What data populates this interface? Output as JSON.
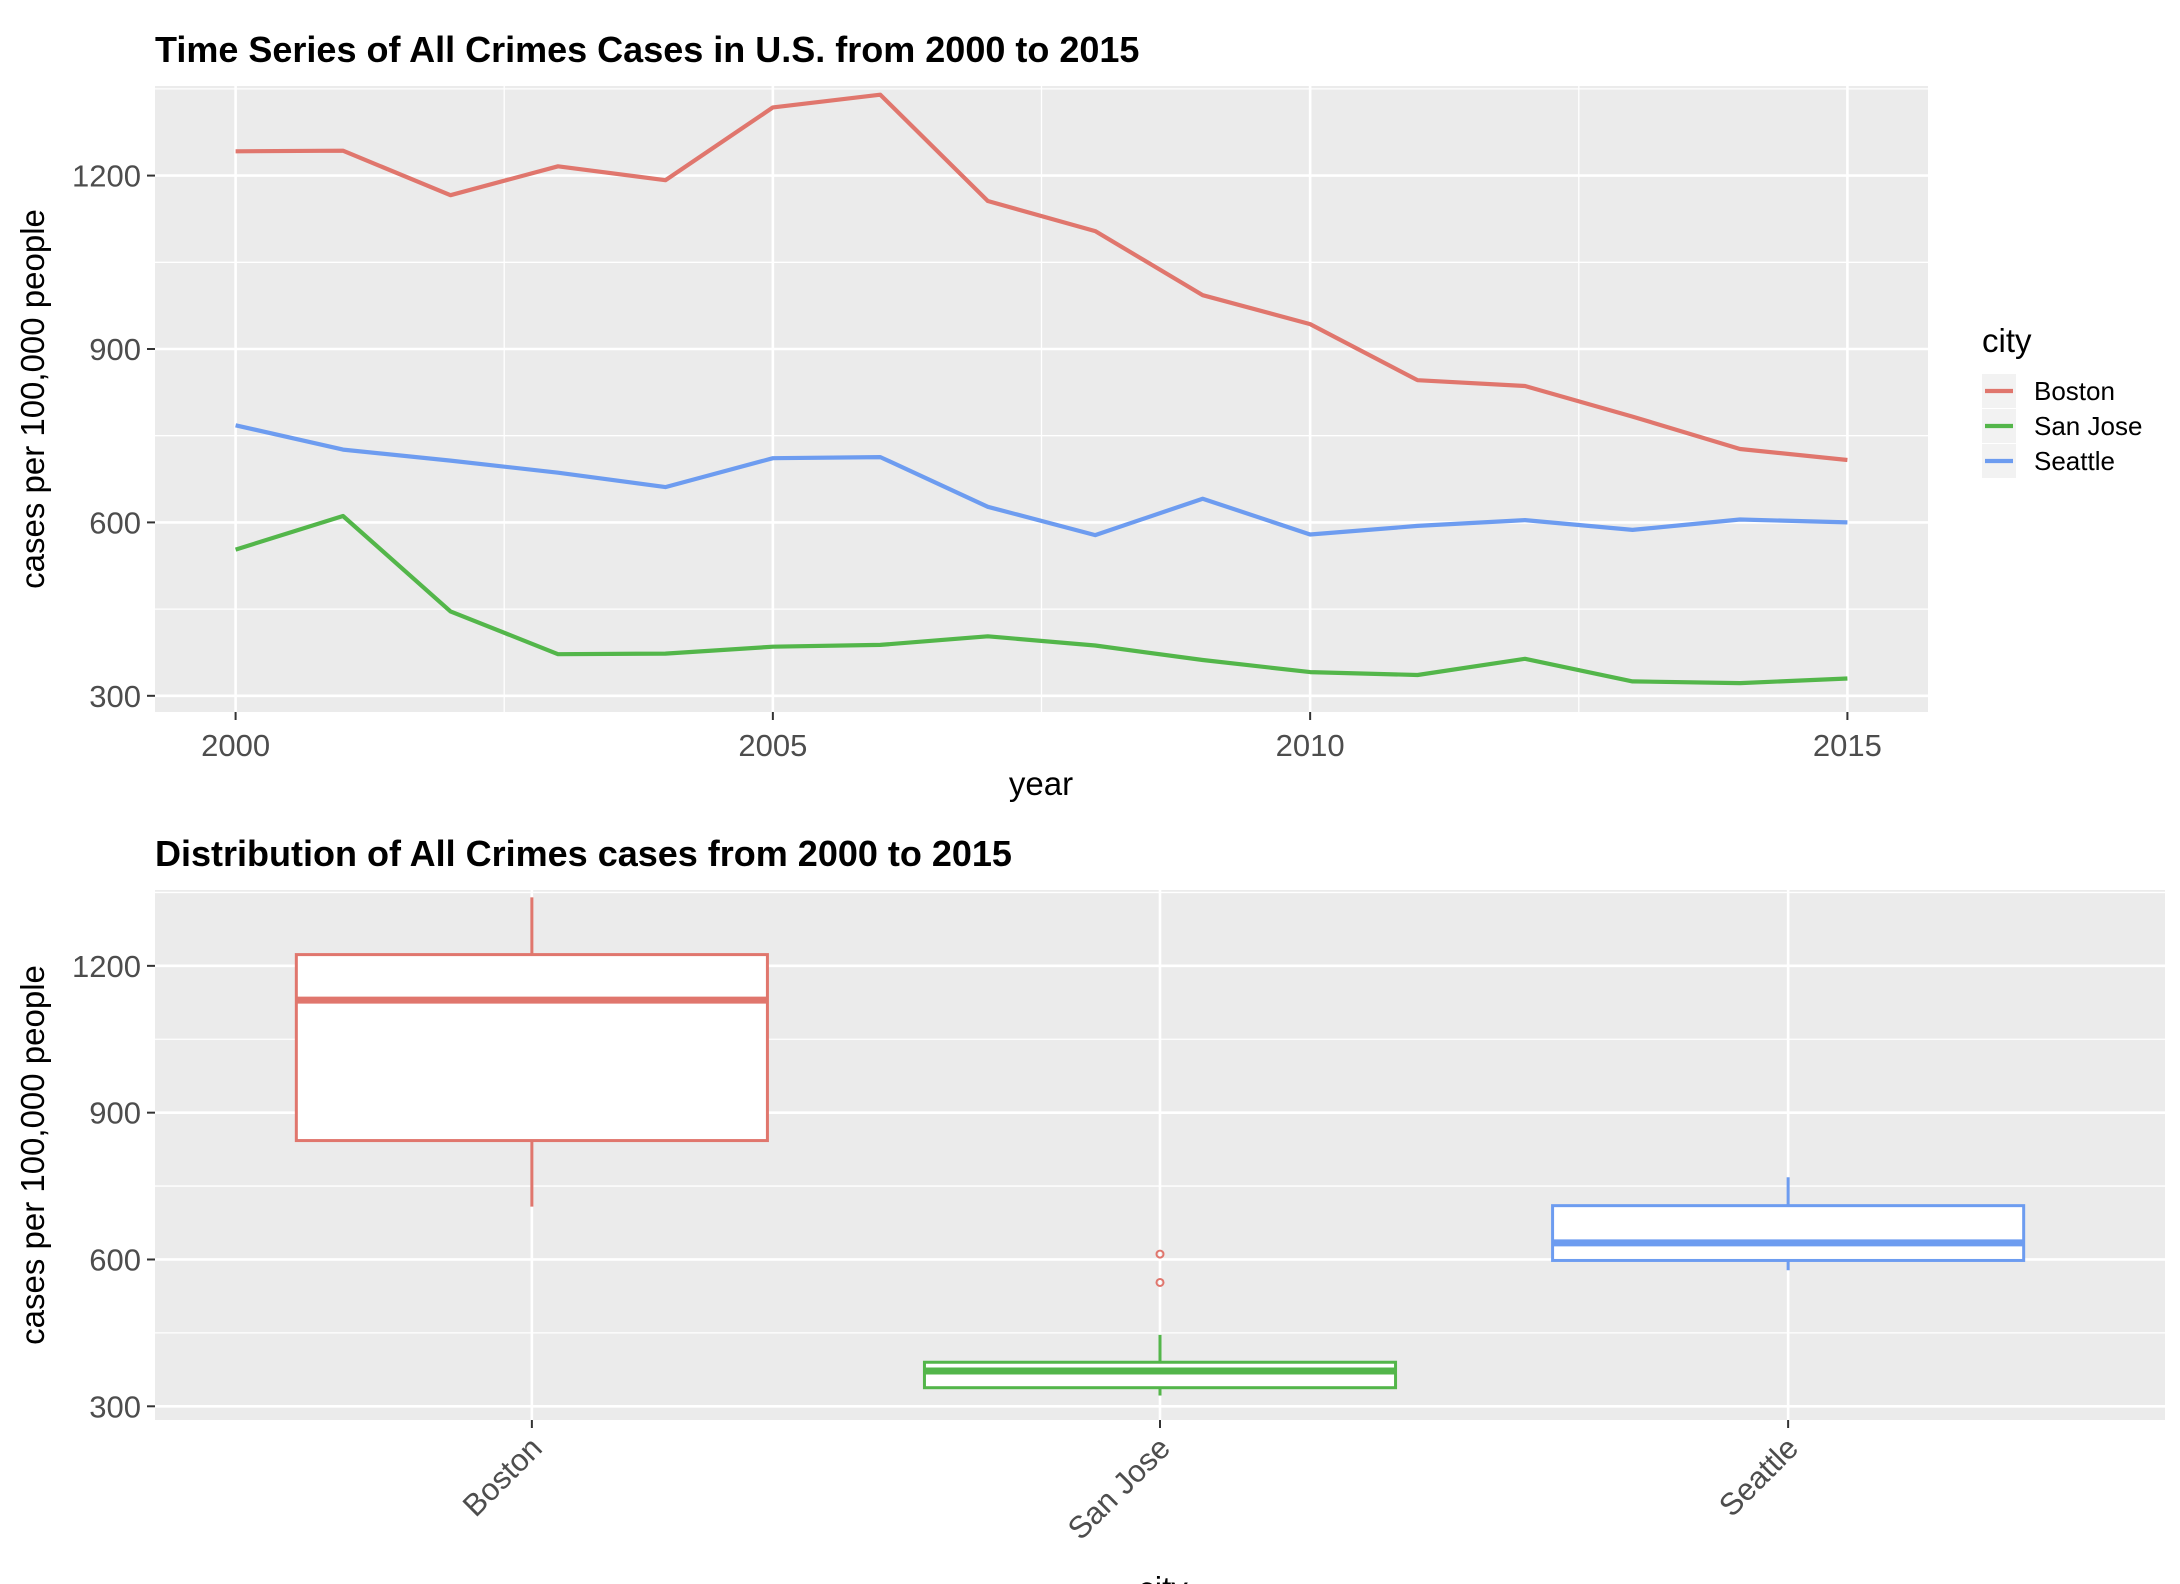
{
  "chart_data": [
    {
      "type": "line",
      "title": "Time Series of All Crimes Cases in U.S. from 2000 to 2015",
      "xlabel": "year",
      "ylabel": "cases per 100,000 people",
      "xlim": [
        1999.25,
        2015.75
      ],
      "ylim": [
        272,
        1355
      ],
      "x_ticks": [
        2000,
        2005,
        2010,
        2015
      ],
      "x_tick_labels": [
        "2000",
        "2005",
        "2010",
        "2015"
      ],
      "y_ticks": [
        300,
        600,
        900,
        1200
      ],
      "y_tick_labels": [
        "300",
        "600",
        "900",
        "1200"
      ],
      "grid": true,
      "legend": {
        "title": "city",
        "position": "right"
      },
      "x": [
        2000,
        2001,
        2002,
        2003,
        2004,
        2005,
        2006,
        2007,
        2008,
        2009,
        2010,
        2011,
        2012,
        2013,
        2014,
        2015
      ],
      "series": [
        {
          "name": "Boston",
          "color": "#e0766d",
          "values": [
            1242,
            1243,
            1166,
            1216,
            1192,
            1318,
            1340,
            1156,
            1104,
            993,
            943,
            846,
            836,
            783,
            727,
            708
          ]
        },
        {
          "name": "San Jose",
          "color": "#53b64a",
          "values": [
            553,
            611,
            446,
            372,
            373,
            385,
            388,
            403,
            387,
            362,
            341,
            336,
            364,
            325,
            322,
            330
          ]
        },
        {
          "name": "Seattle",
          "color": "#6d9cf0",
          "values": [
            768,
            726,
            707,
            686,
            661,
            711,
            713,
            627,
            578,
            641,
            579,
            594,
            604,
            587,
            605,
            600
          ]
        }
      ]
    },
    {
      "type": "box",
      "title": "Distribution of All Crimes cases from 2000 to 2015",
      "xlabel": "city",
      "ylabel": "cases per 100,000 people",
      "ylim": [
        272,
        1355
      ],
      "y_ticks": [
        300,
        600,
        900,
        1200
      ],
      "y_tick_labels": [
        "300",
        "600",
        "900",
        "1200"
      ],
      "grid": true,
      "categories": [
        "Boston",
        "San Jose",
        "Seattle"
      ],
      "boxes": [
        {
          "name": "Boston",
          "color": "#e0766d",
          "min": 708,
          "q1": 843,
          "median": 1130,
          "q3": 1223,
          "max": 1340,
          "outliers": []
        },
        {
          "name": "San Jose",
          "color": "#53b64a",
          "min": 322,
          "q1": 338,
          "median": 372,
          "q3": 390,
          "max": 446,
          "outliers": [
            553,
            611
          ]
        },
        {
          "name": "Seattle",
          "color": "#6d9cf0",
          "min": 578,
          "q1": 598,
          "median": 634,
          "q3": 710,
          "max": 768,
          "outliers": []
        }
      ],
      "outlier_color": "#e0766d"
    }
  ]
}
